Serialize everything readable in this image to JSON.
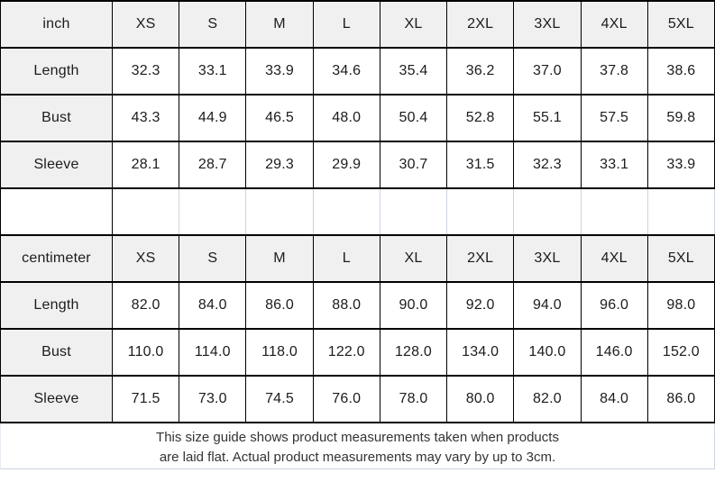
{
  "chart_data": [
    {
      "type": "table",
      "unit": "inch",
      "columns": [
        "inch",
        "XS",
        "S",
        "M",
        "L",
        "XL",
        "2XL",
        "3XL",
        "4XL",
        "5XL"
      ],
      "rows": [
        [
          "Length",
          "32.3",
          "33.1",
          "33.9",
          "34.6",
          "35.4",
          "36.2",
          "37.0",
          "37.8",
          "38.6"
        ],
        [
          "Bust",
          "43.3",
          "44.9",
          "46.5",
          "48.0",
          "50.4",
          "52.8",
          "55.1",
          "57.5",
          "59.8"
        ],
        [
          "Sleeve",
          "28.1",
          "28.7",
          "29.3",
          "29.9",
          "30.7",
          "31.5",
          "32.3",
          "33.1",
          "33.9"
        ]
      ]
    },
    {
      "type": "table",
      "unit": "centimeter",
      "columns": [
        "centimeter",
        "XS",
        "S",
        "M",
        "L",
        "XL",
        "2XL",
        "3XL",
        "4XL",
        "5XL"
      ],
      "rows": [
        [
          "Length",
          "82.0",
          "84.0",
          "86.0",
          "88.0",
          "90.0",
          "92.0",
          "94.0",
          "96.0",
          "98.0"
        ],
        [
          "Bust",
          "110.0",
          "114.0",
          "118.0",
          "122.0",
          "128.0",
          "134.0",
          "140.0",
          "146.0",
          "152.0"
        ],
        [
          "Sleeve",
          "71.5",
          "73.0",
          "74.5",
          "76.0",
          "78.0",
          "80.0",
          "82.0",
          "84.0",
          "86.0"
        ]
      ]
    }
  ],
  "footer": {
    "line1": "This size guide shows product measurements taken when products",
    "line2": "are laid flat. Actual product measurements may vary by up to 3cm."
  },
  "colors": {
    "header_bg": "#f0f0f0",
    "border_dark": "#000000",
    "border_light": "#ccd4e2",
    "table_text": "#1c1c1c",
    "footer_text": "#333333"
  }
}
